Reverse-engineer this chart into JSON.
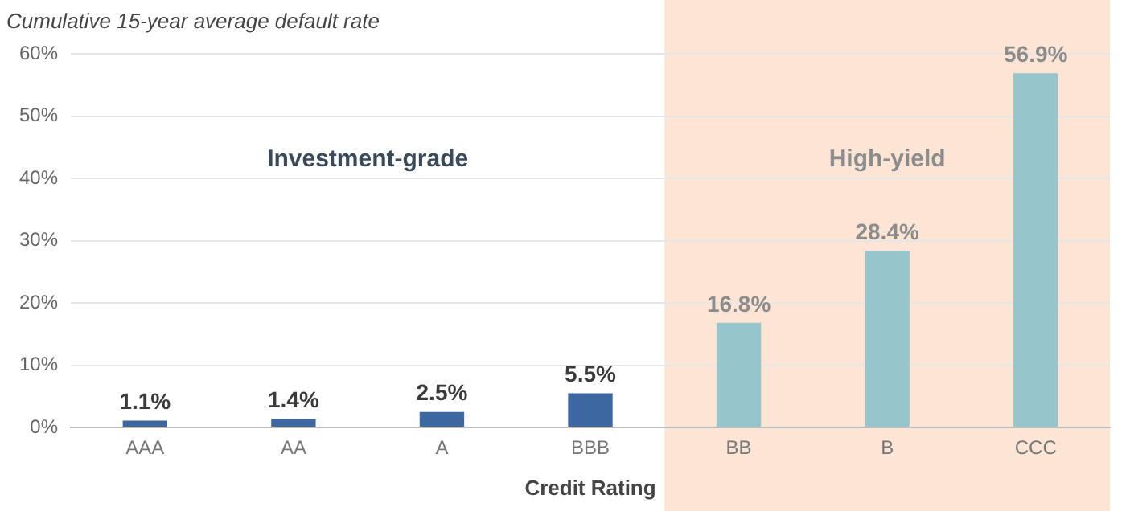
{
  "chart_data": {
    "type": "bar",
    "title": "Cumulative 15-year average default rate",
    "xlabel": "Credit Rating",
    "categories": [
      "AAA",
      "AA",
      "A",
      "BBB",
      "BB",
      "B",
      "CCC"
    ],
    "values": [
      1.1,
      1.4,
      2.5,
      5.5,
      16.8,
      28.4,
      56.9
    ],
    "colors": [
      "#3c67a0",
      "#3c67a0",
      "#3c67a0",
      "#3c67a0",
      "#96c6cc",
      "#96c6cc",
      "#96c6cc"
    ],
    "value_labels": [
      "1.1%",
      "1.4%",
      "2.5%",
      "5.5%",
      "16.8%",
      "28.4%",
      "56.9%"
    ],
    "ylim": [
      0,
      60
    ],
    "yticks": [
      {
        "value": 0,
        "label": "0%"
      },
      {
        "value": 10,
        "label": "10%"
      },
      {
        "value": 20,
        "label": "20%"
      },
      {
        "value": 30,
        "label": "30%"
      },
      {
        "value": 40,
        "label": "40%"
      },
      {
        "value": 50,
        "label": "50%"
      },
      {
        "value": 60,
        "label": "60%"
      }
    ],
    "grid": "y",
    "bands": [
      {
        "axis": "x",
        "from": "BB",
        "to": "CCC",
        "label": "High-yield",
        "color": "#fce5d5"
      }
    ],
    "annotations": [
      "Investment-grade"
    ]
  }
}
